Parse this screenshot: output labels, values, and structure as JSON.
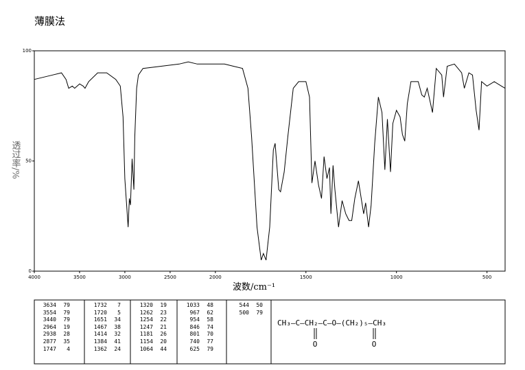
{
  "title": "薄膜法",
  "chart_data": {
    "type": "line",
    "y_label": "透过率/%",
    "x_label": "波数/cm⁻¹",
    "xlim": [
      4000,
      400
    ],
    "x_scale_break": 2000,
    "xticks": [
      4000,
      3500,
      3000,
      2500,
      2000,
      1500,
      1000,
      500
    ],
    "ylim": [
      0,
      100
    ],
    "yticks": [
      0,
      50,
      100
    ],
    "x": [
      4000,
      3800,
      3700,
      3650,
      3620,
      3580,
      3554,
      3500,
      3460,
      3440,
      3400,
      3300,
      3200,
      3100,
      3050,
      3020,
      3000,
      2964,
      2950,
      2938,
      2920,
      2900,
      2890,
      2870,
      2850,
      2800,
      2600,
      2400,
      2300,
      2200,
      2100,
      2000,
      1950,
      1900,
      1850,
      1820,
      1800,
      1770,
      1747,
      1735,
      1720,
      1700,
      1680,
      1670,
      1650,
      1640,
      1620,
      1600,
      1570,
      1540,
      1500,
      1480,
      1467,
      1450,
      1430,
      1414,
      1400,
      1384,
      1370,
      1362,
      1350,
      1340,
      1320,
      1300,
      1280,
      1262,
      1247,
      1230,
      1210,
      1181,
      1170,
      1154,
      1140,
      1120,
      1100,
      1080,
      1064,
      1050,
      1033,
      1020,
      1000,
      980,
      967,
      954,
      940,
      920,
      880,
      860,
      846,
      830,
      801,
      780,
      750,
      740,
      720,
      680,
      640,
      625,
      600,
      580,
      560,
      544,
      530,
      500,
      460,
      420,
      400
    ],
    "series": [
      {
        "color": "#000000",
        "values": [
          87,
          89,
          90,
          87,
          83,
          84,
          83,
          85,
          84,
          83,
          86,
          90,
          90,
          87,
          84,
          70,
          42,
          20,
          33,
          30,
          51,
          37,
          61,
          83,
          89,
          92,
          93,
          94,
          95,
          94,
          94,
          94,
          94,
          93,
          92,
          83,
          61,
          20,
          5,
          8,
          5,
          20,
          55,
          58,
          37,
          36,
          45,
          61,
          83,
          86,
          86,
          79,
          40,
          50,
          39,
          33,
          52,
          42,
          47,
          26,
          48,
          37,
          20,
          32,
          26,
          23,
          23,
          33,
          41,
          26,
          31,
          20,
          30,
          58,
          79,
          72,
          46,
          69,
          45,
          67,
          73,
          70,
          62,
          59,
          76,
          86,
          86,
          80,
          79,
          83,
          72,
          92,
          89,
          79,
          93,
          94,
          90,
          83,
          90,
          89,
          73,
          64,
          86,
          84,
          86,
          84,
          83
        ]
      }
    ]
  },
  "peak_table": {
    "columns": [
      [
        [
          3634,
          79
        ],
        [
          3554,
          79
        ],
        [
          3440,
          79
        ],
        [
          2964,
          19
        ],
        [
          2938,
          28
        ],
        [
          2877,
          35
        ],
        [
          1747,
          4
        ]
      ],
      [
        [
          1732,
          7
        ],
        [
          1720,
          5
        ],
        [
          1651,
          34
        ],
        [
          1467,
          38
        ],
        [
          1414,
          32
        ],
        [
          1384,
          41
        ],
        [
          1362,
          24
        ]
      ],
      [
        [
          1320,
          19
        ],
        [
          1262,
          23
        ],
        [
          1254,
          22
        ],
        [
          1247,
          21
        ],
        [
          1181,
          26
        ],
        [
          1154,
          20
        ],
        [
          1064,
          44
        ]
      ],
      [
        [
          1033,
          48
        ],
        [
          967,
          62
        ],
        [
          954,
          58
        ],
        [
          846,
          74
        ],
        [
          801,
          70
        ],
        [
          740,
          77
        ],
        [
          625,
          79
        ]
      ],
      [
        [
          544,
          50
        ],
        [
          500,
          79
        ]
      ]
    ]
  },
  "structure": {
    "formula": "CH₃—C—CH₂—C—O—(CH₂)₅—CH₃",
    "carbonyl_oxygens": [
      "O",
      "O"
    ]
  }
}
